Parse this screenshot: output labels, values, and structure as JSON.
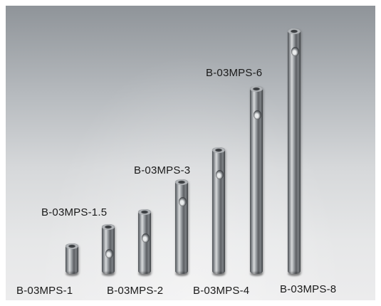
{
  "photo": {
    "labels": {
      "mps1": "B-03MPS-1",
      "mps15": "B-03MPS-1.5",
      "mps2": "B-03MPS-2",
      "mps3": "B-03MPS-3",
      "mps4": "B-03MPS-4",
      "mps6": "B-03MPS-6",
      "mps8": "B-03MPS-8"
    },
    "colors": {
      "background_top": "#8f9499",
      "background_bottom": "#ececed",
      "metal_light": "#d7d9db",
      "metal_dark": "#3e4144"
    }
  }
}
